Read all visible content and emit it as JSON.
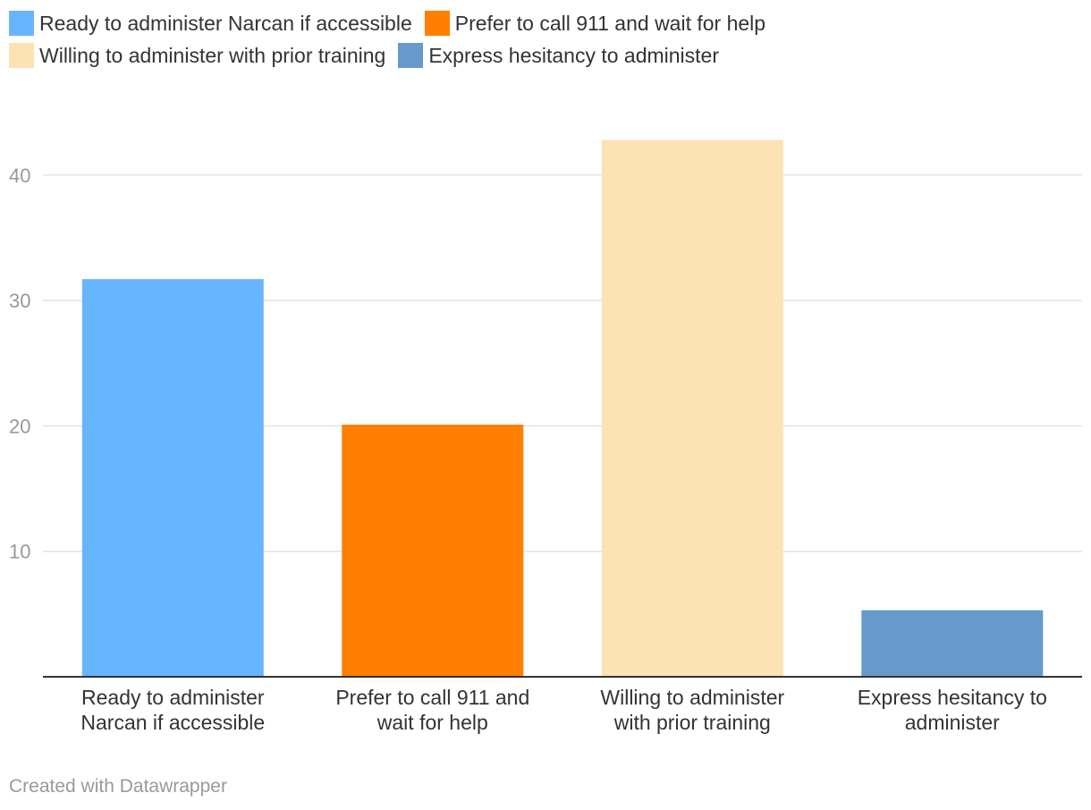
{
  "chart_data": {
    "type": "bar",
    "categories": [
      "Ready to administer Narcan if accessible",
      "Prefer to call 911 and wait for help",
      "Willing to administer with prior training",
      "Express hesitancy to administer"
    ],
    "category_label_lines": [
      [
        "Ready to administer",
        "Narcan if accessible"
      ],
      [
        "Prefer to call 911 and",
        "wait for help"
      ],
      [
        "Willing to administer",
        "with prior training"
      ],
      [
        "Express hesitancy to",
        "administer"
      ]
    ],
    "values": [
      31.7,
      20.1,
      42.8,
      5.3
    ],
    "colors": [
      "#67b5ff",
      "#ff7f00",
      "#fde2b4",
      "#6699cc"
    ],
    "legend": [
      {
        "label": "Ready to administer Narcan if accessible",
        "color": "#67b5ff"
      },
      {
        "label": "Prefer to call 911 and wait for help",
        "color": "#ff7f00"
      },
      {
        "label": "Willing to administer with prior training",
        "color": "#fde2b4"
      },
      {
        "label": "Express hesitancy to administer",
        "color": "#6699cc"
      }
    ],
    "legend_position": "top-left",
    "yticks": [
      10,
      20,
      30,
      40
    ],
    "ylim": [
      0,
      45
    ],
    "grid": true,
    "title": "",
    "xlabel": "",
    "ylabel": ""
  },
  "footer": {
    "credit": "Created with Datawrapper"
  }
}
